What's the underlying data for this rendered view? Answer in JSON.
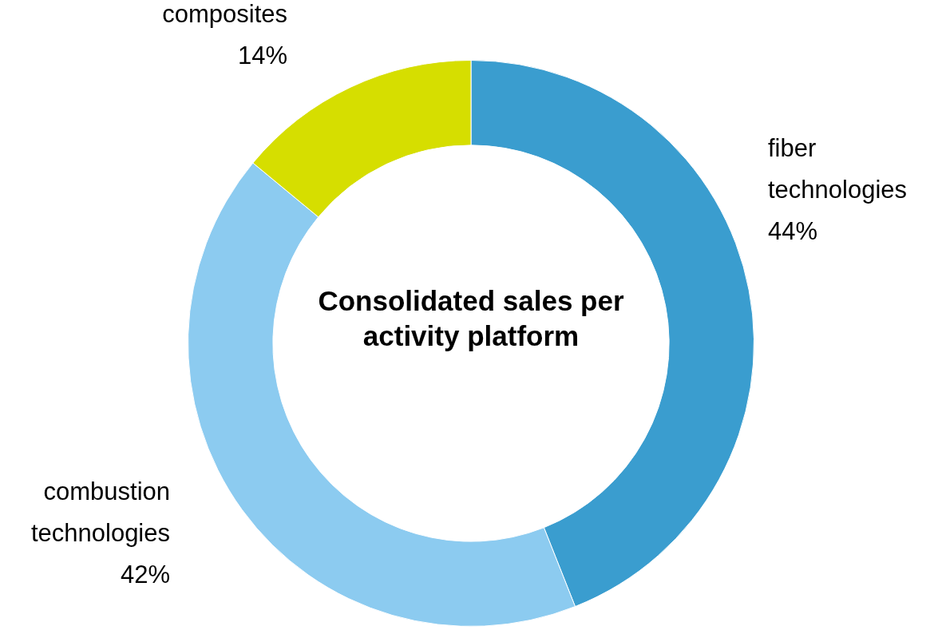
{
  "chart_data": {
    "type": "donut",
    "title": "Consolidated sales per activity platform",
    "categories": [
      "fiber technologies",
      "combustion technologies",
      "composites"
    ],
    "values": [
      44,
      42,
      14
    ],
    "value_labels": [
      "44%",
      "42%",
      "14%"
    ],
    "colors": [
      "#3a9dcf",
      "#8ccbf0",
      "#d6de00"
    ],
    "legend": false
  }
}
